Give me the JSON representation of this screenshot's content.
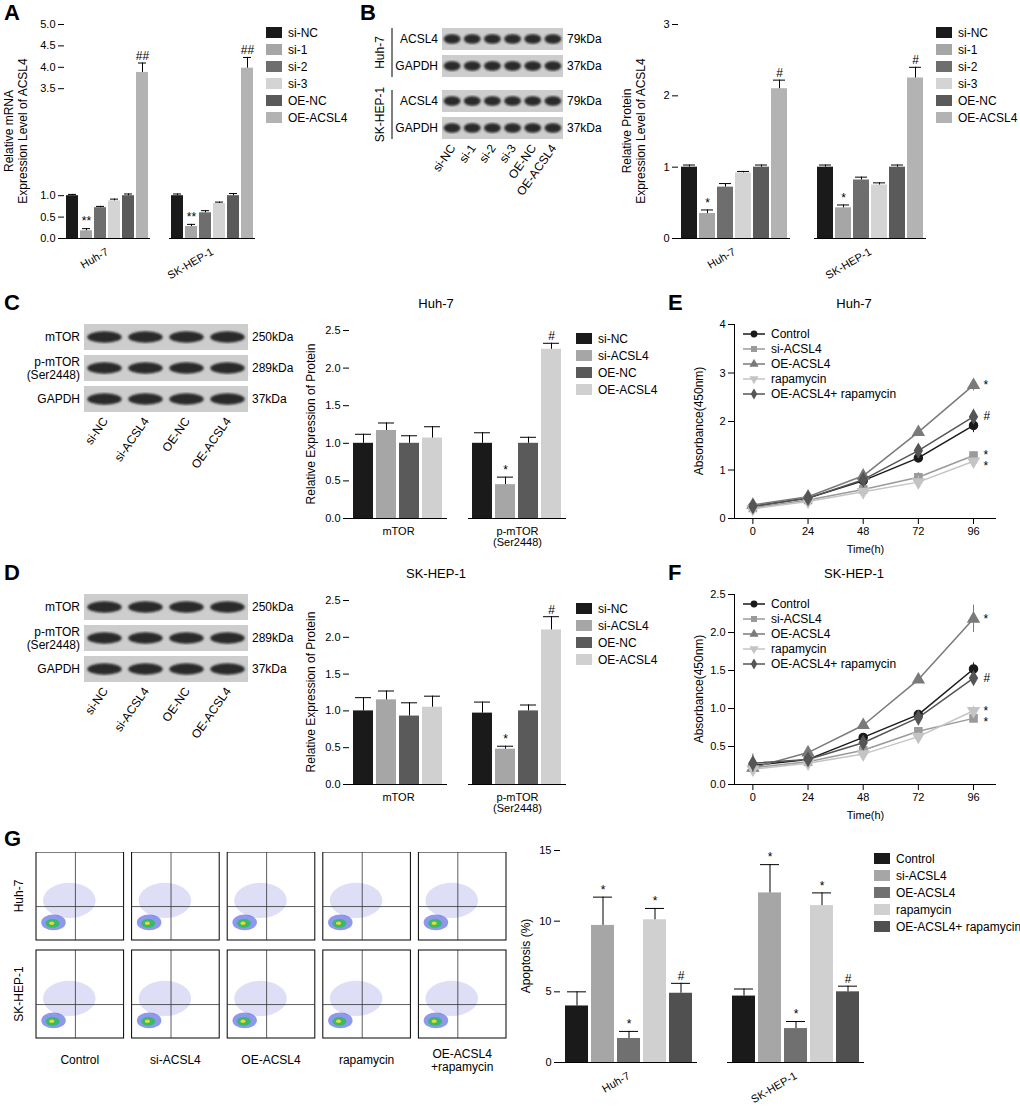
{
  "chart_data": [
    {
      "panel_label": "A",
      "type": "bar",
      "ylabel": "Relative mRNA\nExpression Level of ACSL4",
      "categories": [
        "Huh-7",
        "SK-HEP-1"
      ],
      "ylim": [
        0,
        5
      ],
      "yticks": [
        {
          "value": 0,
          "label": "0.0"
        },
        0.5,
        {
          "value": 1,
          "label": "1.0"
        },
        3.5,
        {
          "value": 4,
          "label": "4.0"
        },
        4.5,
        {
          "value": 5,
          "label": "5.0"
        }
      ],
      "series": [
        {
          "name": "si-NC",
          "color": "#1a1a1a",
          "values": [
            1.0,
            1.0
          ],
          "errors": [
            0.03,
            0.04
          ],
          "significance": [
            null,
            null
          ]
        },
        {
          "name": "si-1",
          "color": "#a6a6a6",
          "values": [
            0.18,
            0.28
          ],
          "errors": [
            0.05,
            0.05
          ],
          "significance": [
            "**",
            "**"
          ]
        },
        {
          "name": "si-2",
          "color": "#6e6e6e",
          "values": [
            0.72,
            0.6
          ],
          "errors": [
            0.03,
            0.05
          ],
          "significance": [
            null,
            null
          ]
        },
        {
          "name": "si-3",
          "color": "#d4d4d4",
          "values": [
            0.88,
            0.82
          ],
          "errors": [
            0.04,
            0.03
          ],
          "significance": [
            null,
            null
          ]
        },
        {
          "name": "OE-NC",
          "color": "#5a5a5a",
          "values": [
            1.0,
            1.0
          ],
          "errors": [
            0.04,
            0.05
          ],
          "significance": [
            null,
            null
          ]
        },
        {
          "name": "OE-ACSL4",
          "color": "#b3b3b3",
          "values": [
            3.88,
            3.98
          ],
          "errors": [
            0.22,
            0.25
          ],
          "significance": [
            "##",
            "##"
          ]
        }
      ]
    },
    {
      "panel_label": "B",
      "type": "bar",
      "ylabel": "Relative Protein\nExpression Level of ACSL4",
      "categories": [
        "Huh-7",
        "SK-HEP-1"
      ],
      "ylim": [
        0,
        3
      ],
      "yticks": [
        0,
        1,
        2,
        3
      ],
      "series": [
        {
          "name": "si-NC",
          "color": "#1a1a1a",
          "values": [
            1.0,
            1.0
          ],
          "errors": [
            0.03,
            0.03
          ],
          "significance": [
            null,
            null
          ]
        },
        {
          "name": "si-1",
          "color": "#a6a6a6",
          "values": [
            0.35,
            0.43
          ],
          "errors": [
            0.05,
            0.04
          ],
          "significance": [
            "*",
            "*"
          ]
        },
        {
          "name": "si-2",
          "color": "#6e6e6e",
          "values": [
            0.72,
            0.82
          ],
          "errors": [
            0.05,
            0.04
          ],
          "significance": [
            null,
            null
          ]
        },
        {
          "name": "si-3",
          "color": "#d4d4d4",
          "values": [
            0.92,
            0.75
          ],
          "errors": [
            0.02,
            0.03
          ],
          "significance": [
            null,
            null
          ]
        },
        {
          "name": "OE-NC",
          "color": "#5a5a5a",
          "values": [
            1.0,
            1.0
          ],
          "errors": [
            0.03,
            0.03
          ],
          "significance": [
            null,
            null
          ]
        },
        {
          "name": "OE-ACSL4",
          "color": "#b3b3b3",
          "values": [
            2.1,
            2.25
          ],
          "errors": [
            0.12,
            0.15
          ],
          "significance": [
            "#",
            "#"
          ]
        }
      ],
      "blot": {
        "cell_lines": [
          "Huh-7",
          "SK-HEP-1"
        ],
        "rows": [
          {
            "protein": "ACSL4",
            "size": "79kDa"
          },
          {
            "protein": "GAPDH",
            "size": "37kDa"
          }
        ],
        "lanes": [
          "si-NC",
          "si-1",
          "si-2",
          "si-3",
          "OE-NC",
          "OE-ACSL4"
        ]
      }
    },
    {
      "panel_label": "C",
      "type": "bar",
      "title": "Huh-7",
      "ylabel": "Relative Expression of Protein",
      "categories": [
        "mTOR",
        "p-mTOR\n(Ser2448)"
      ],
      "ylim": [
        0,
        2.5
      ],
      "yticks": [
        {
          "value": 0,
          "label": "0.0"
        },
        0.5,
        {
          "value": 1,
          "label": "1.0"
        },
        1.5,
        {
          "value": 2,
          "label": "2.0"
        },
        2.5
      ],
      "series": [
        {
          "name": "si-NC",
          "color": "#1a1a1a",
          "values": [
            1.0,
            1.0
          ],
          "errors": [
            0.12,
            0.14
          ],
          "significance": [
            null,
            null
          ]
        },
        {
          "name": "si-ACSL4",
          "color": "#a6a6a6",
          "values": [
            1.17,
            0.45
          ],
          "errors": [
            0.1,
            0.1
          ],
          "significance": [
            null,
            "*"
          ]
        },
        {
          "name": "OE-NC",
          "color": "#5a5a5a",
          "values": [
            1.0,
            1.0
          ],
          "errors": [
            0.1,
            0.08
          ],
          "significance": [
            null,
            null
          ]
        },
        {
          "name": "OE-ACSL4",
          "color": "#d0d0d0",
          "values": [
            1.07,
            2.25
          ],
          "errors": [
            0.15,
            0.08
          ],
          "significance": [
            null,
            "#"
          ]
        }
      ],
      "blot": {
        "rows": [
          {
            "protein": "mTOR",
            "size": "250kDa"
          },
          {
            "protein": "p-mTOR\n(Ser2448)",
            "size": "289kDa"
          },
          {
            "protein": "GAPDH",
            "size": "37kDa"
          }
        ],
        "lanes": [
          "si-NC",
          "si-ACSL4",
          "OE-NC",
          "OE-ACSL4"
        ]
      }
    },
    {
      "panel_label": "D",
      "type": "bar",
      "title": "SK-HEP-1",
      "ylabel": "Relative Expression of Protein",
      "categories": [
        "mTOR",
        "p-mTOR\n(Ser2448)"
      ],
      "ylim": [
        0,
        2.5
      ],
      "yticks": [
        {
          "value": 0,
          "label": "0.0"
        },
        0.5,
        {
          "value": 1,
          "label": "1.0"
        },
        1.5,
        {
          "value": 2,
          "label": "2.0"
        },
        2.5
      ],
      "series": [
        {
          "name": "si-NC",
          "color": "#1a1a1a",
          "values": [
            1.0,
            0.97
          ],
          "errors": [
            0.18,
            0.15
          ],
          "significance": [
            null,
            null
          ]
        },
        {
          "name": "si-ACSL4",
          "color": "#a6a6a6",
          "values": [
            1.15,
            0.48
          ],
          "errors": [
            0.12,
            0.04
          ],
          "significance": [
            null,
            "*"
          ]
        },
        {
          "name": "OE-NC",
          "color": "#5a5a5a",
          "values": [
            0.93,
            1.0
          ],
          "errors": [
            0.18,
            0.08
          ],
          "significance": [
            null,
            null
          ]
        },
        {
          "name": "OE-ACSL4",
          "color": "#d0d0d0",
          "values": [
            1.05,
            2.1
          ],
          "errors": [
            0.15,
            0.18
          ],
          "significance": [
            null,
            "#"
          ]
        }
      ],
      "blot": {
        "rows": [
          {
            "protein": "mTOR",
            "size": "250kDa"
          },
          {
            "protein": "p-mTOR\n(Ser2448)",
            "size": "289kDa"
          },
          {
            "protein": "GAPDH",
            "size": "37kDa"
          }
        ],
        "lanes": [
          "si-NC",
          "si-ACSL4",
          "OE-NC",
          "OE-ACSL4"
        ]
      }
    },
    {
      "panel_label": "E",
      "type": "line",
      "title": "Huh-7",
      "xlabel": "Time(h)",
      "ylabel": "Absorbance(450nm)",
      "x": [
        0,
        24,
        48,
        72,
        96
      ],
      "xlim": [
        -8,
        106
      ],
      "xticks": [
        0,
        24,
        48,
        72,
        96
      ],
      "ylim": [
        0,
        4
      ],
      "yticks": [
        0,
        1,
        2,
        3,
        4
      ],
      "series": [
        {
          "name": "Control",
          "color": "#1a1a1a",
          "marker": "circle",
          "values": [
            0.25,
            0.42,
            0.78,
            1.25,
            1.92
          ],
          "errors": [
            0.08,
            0.05,
            0.05,
            0.08,
            0.15
          ],
          "significance": null
        },
        {
          "name": "si-ACSL4",
          "color": "#9a9a9a",
          "marker": "square",
          "values": [
            0.22,
            0.38,
            0.6,
            0.85,
            1.3
          ],
          "errors": [
            0.06,
            0.05,
            0.06,
            0.1,
            0.08
          ],
          "significance": "*"
        },
        {
          "name": "OE-ACSL4",
          "color": "#7a7a7a",
          "marker": "triangle",
          "values": [
            0.28,
            0.45,
            0.88,
            1.78,
            2.75
          ],
          "errors": [
            0.06,
            0.05,
            0.06,
            0.08,
            0.12
          ],
          "significance": "*"
        },
        {
          "name": "rapamycin",
          "color": "#c4c4c4",
          "marker": "triangle-down",
          "values": [
            0.2,
            0.35,
            0.55,
            0.75,
            1.18
          ],
          "errors": [
            0.05,
            0.04,
            0.06,
            0.12,
            0.06
          ],
          "significance": "*"
        },
        {
          "name": "OE-ACSL4+ rapamycin",
          "color": "#555555",
          "marker": "diamond",
          "values": [
            0.25,
            0.42,
            0.8,
            1.4,
            2.1
          ],
          "errors": [
            0.05,
            0.05,
            0.06,
            0.08,
            0.15
          ],
          "significance": "#"
        }
      ]
    },
    {
      "panel_label": "F",
      "type": "line",
      "title": "SK-HEP-1",
      "xlabel": "Time(h)",
      "ylabel": "Absorbance(450nm)",
      "x": [
        0,
        24,
        48,
        72,
        96
      ],
      "xlim": [
        -8,
        106
      ],
      "xticks": [
        0,
        24,
        48,
        72,
        96
      ],
      "ylim": [
        0,
        2.5
      ],
      "yticks": [
        {
          "value": 0,
          "label": "0.0"
        },
        0.5,
        {
          "value": 1,
          "label": "1.0"
        },
        1.5,
        {
          "value": 2,
          "label": "2.0"
        },
        2.5
      ],
      "series": [
        {
          "name": "Control",
          "color": "#1a1a1a",
          "marker": "circle",
          "values": [
            0.25,
            0.33,
            0.62,
            0.92,
            1.52
          ],
          "errors": [
            0.1,
            0.03,
            0.04,
            0.05,
            0.08
          ],
          "significance": null
        },
        {
          "name": "si-ACSL4",
          "color": "#9a9a9a",
          "marker": "square",
          "values": [
            0.22,
            0.3,
            0.45,
            0.7,
            0.87
          ],
          "errors": [
            0.05,
            0.03,
            0.04,
            0.04,
            0.05
          ],
          "significance": "*"
        },
        {
          "name": "OE-ACSL4",
          "color": "#7a7a7a",
          "marker": "triangle",
          "values": [
            0.22,
            0.42,
            0.78,
            1.38,
            2.18
          ],
          "errors": [
            0.05,
            0.03,
            0.04,
            0.05,
            0.18
          ],
          "significance": "*"
        },
        {
          "name": "rapamycin",
          "color": "#c4c4c4",
          "marker": "triangle-down",
          "values": [
            0.2,
            0.28,
            0.4,
            0.63,
            0.97
          ],
          "errors": [
            0.05,
            0.03,
            0.04,
            0.05,
            0.06
          ],
          "significance": "*"
        },
        {
          "name": "OE-ACSL4+ rapamycin",
          "color": "#555555",
          "marker": "diamond",
          "values": [
            0.28,
            0.33,
            0.55,
            0.88,
            1.4
          ],
          "errors": [
            0.12,
            0.03,
            0.04,
            0.05,
            0.06
          ],
          "significance": "#"
        }
      ]
    },
    {
      "panel_label": "G",
      "type": "bar",
      "ylabel": "Apoptosis (%)",
      "categories": [
        "Huh-7",
        "SK-HEP-1"
      ],
      "ylim": [
        0,
        15
      ],
      "yticks": [
        0,
        5,
        10,
        15
      ],
      "series": [
        {
          "name": "Control",
          "color": "#1a1a1a",
          "values": [
            4.0,
            4.7
          ],
          "errors": [
            1.0,
            0.5
          ],
          "significance": [
            null,
            null
          ]
        },
        {
          "name": "si-ACSL4",
          "color": "#a6a6a6",
          "values": [
            9.7,
            12.0
          ],
          "errors": [
            2.0,
            2.0
          ],
          "significance": [
            "*",
            "*"
          ]
        },
        {
          "name": "OE-ACSL4",
          "color": "#707070",
          "values": [
            1.7,
            2.4
          ],
          "errors": [
            0.5,
            0.5
          ],
          "significance": [
            "*",
            "*"
          ]
        },
        {
          "name": "rapamycin",
          "color": "#d0d0d0",
          "values": [
            10.1,
            11.1
          ],
          "errors": [
            0.8,
            0.9
          ],
          "significance": [
            "*",
            "*"
          ]
        },
        {
          "name": "OE-ACSL4+ rapamycin",
          "color": "#505050",
          "values": [
            4.9,
            5.0
          ],
          "errors": [
            0.7,
            0.4
          ],
          "significance": [
            "#",
            "#"
          ]
        }
      ],
      "flow": {
        "rows": [
          "Huh-7",
          "SK-HEP-1"
        ],
        "columns": [
          "Control",
          "si-ACSL4",
          "OE-ACSL4",
          "rapamycin",
          "OE-ACSL4\n+rapamycin"
        ]
      }
    }
  ]
}
